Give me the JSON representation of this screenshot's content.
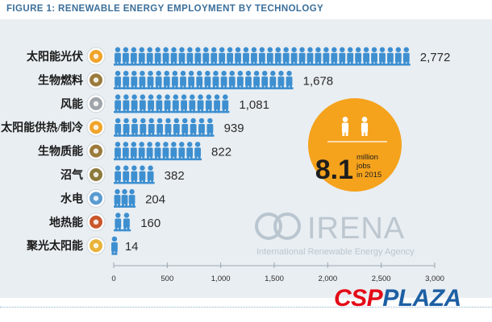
{
  "header": {
    "title": "FIGURE 1: RENEWABLE ENERGY EMPLOYMENT BY TECHNOLOGY"
  },
  "chart_data": {
    "type": "bar",
    "orientation": "horizontal",
    "categories": [
      "太阳能光伏",
      "生物燃料",
      "风能",
      "太阳能供热/制冷",
      "生物质能",
      "沼气",
      "水电",
      "地热能",
      "聚光太阳能"
    ],
    "values": [
      2772,
      1678,
      1081,
      939,
      822,
      382,
      204,
      160,
      14
    ],
    "value_labels": [
      "2,772",
      "1,678",
      "1,081",
      "939",
      "822",
      "382",
      "204",
      "160",
      "14"
    ],
    "xlim": [
      0,
      3000
    ],
    "x_ticks": [
      0,
      500,
      1000,
      1500,
      2000,
      2500,
      3000
    ],
    "x_tick_labels": [
      "0",
      "500",
      "1,000",
      "1,500",
      "2,000",
      "2,500",
      "3,000"
    ],
    "grid": false,
    "category_icons": [
      "sun-icon",
      "biofuel-icon",
      "wind-icon",
      "solar-heat-icon",
      "biomass-icon",
      "biogas-icon",
      "water-drop-icon",
      "geothermal-icon",
      "concentrated-solar-icon"
    ],
    "icon_colors": [
      "#f0a42b",
      "#9a7b3c",
      "#9ea4aa",
      "#f0a42b",
      "#9a7b3c",
      "#8c7a3c",
      "#5b9bd0",
      "#c9572b",
      "#e8b33a"
    ],
    "bar_color": "#3d8fd0",
    "callout": {
      "value": "8.1",
      "text": [
        "million",
        "jobs",
        "in 2015"
      ],
      "color": "#f5a21c"
    },
    "watermark": {
      "logo": "IRENA",
      "tagline": "International Renewable Energy Agency"
    }
  },
  "footer": {
    "brand_a": "CSP",
    "brand_b": "PLAZA"
  }
}
